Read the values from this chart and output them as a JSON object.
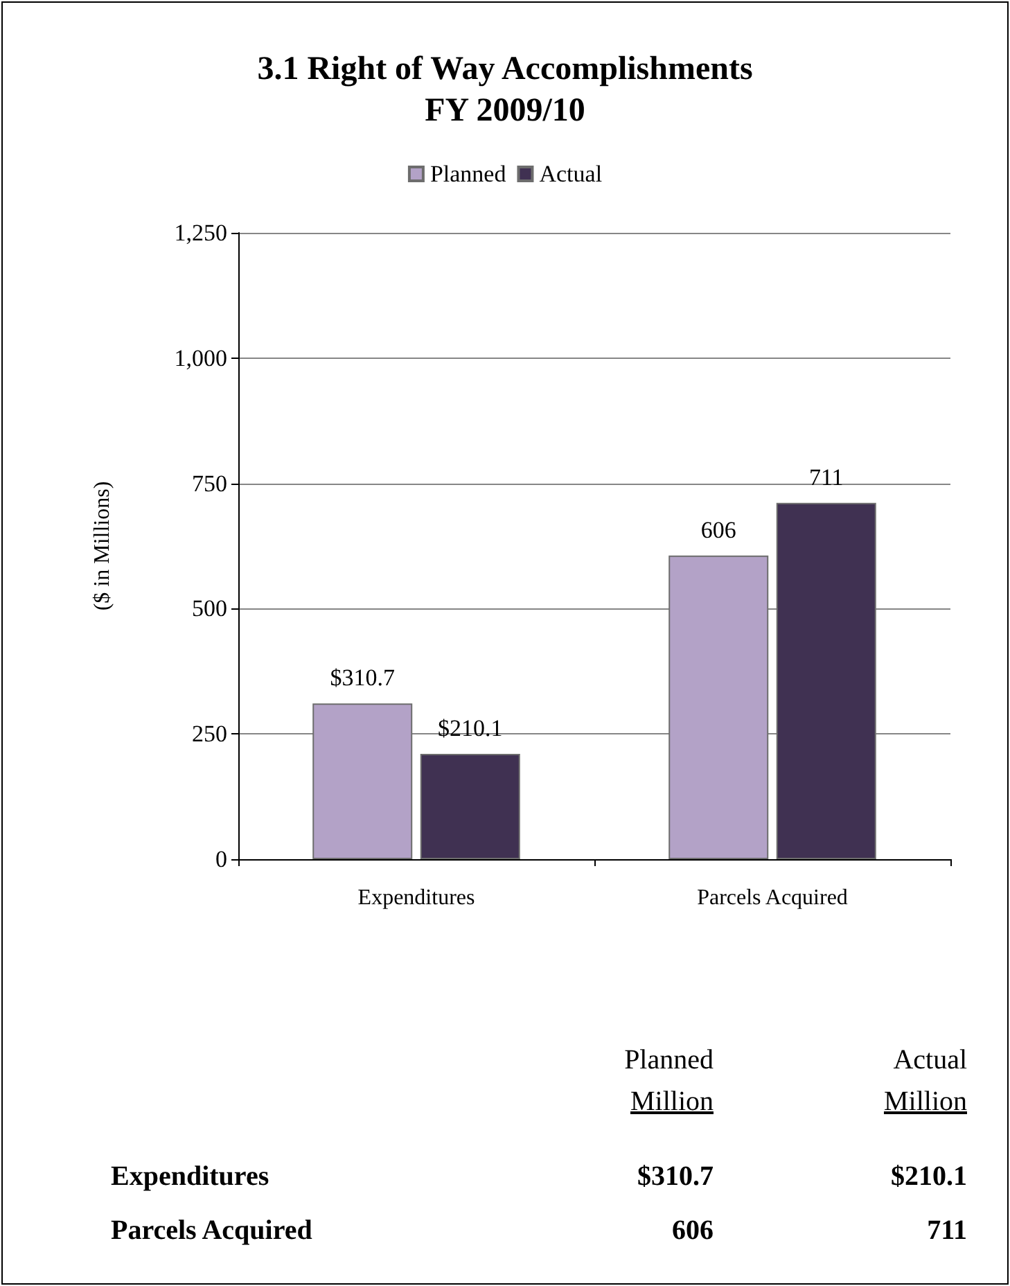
{
  "chart_data": {
    "type": "bar",
    "title": "3.1 Right of Way Accomplishments\nFY 2009/10",
    "ylabel": "($ in Millions)",
    "categories": [
      "Expenditures",
      "Parcels Acquired"
    ],
    "series": [
      {
        "name": "Planned",
        "color": "#b3a2c7",
        "values": [
          310.7,
          606
        ],
        "value_labels": [
          "$310.7",
          "606"
        ]
      },
      {
        "name": "Actual",
        "color": "#403152",
        "values": [
          210.1,
          711
        ],
        "value_labels": [
          "$210.1",
          "711"
        ]
      }
    ],
    "ylim": [
      0,
      1250
    ],
    "yticks": [
      0,
      250,
      500,
      750,
      {
        "value": 1000,
        "label": "1,000"
      },
      {
        "value": 1250,
        "label": "1,250"
      }
    ],
    "grid": "y",
    "legend": "top",
    "annotations": [
      "Million",
      "Million"
    ]
  }
}
